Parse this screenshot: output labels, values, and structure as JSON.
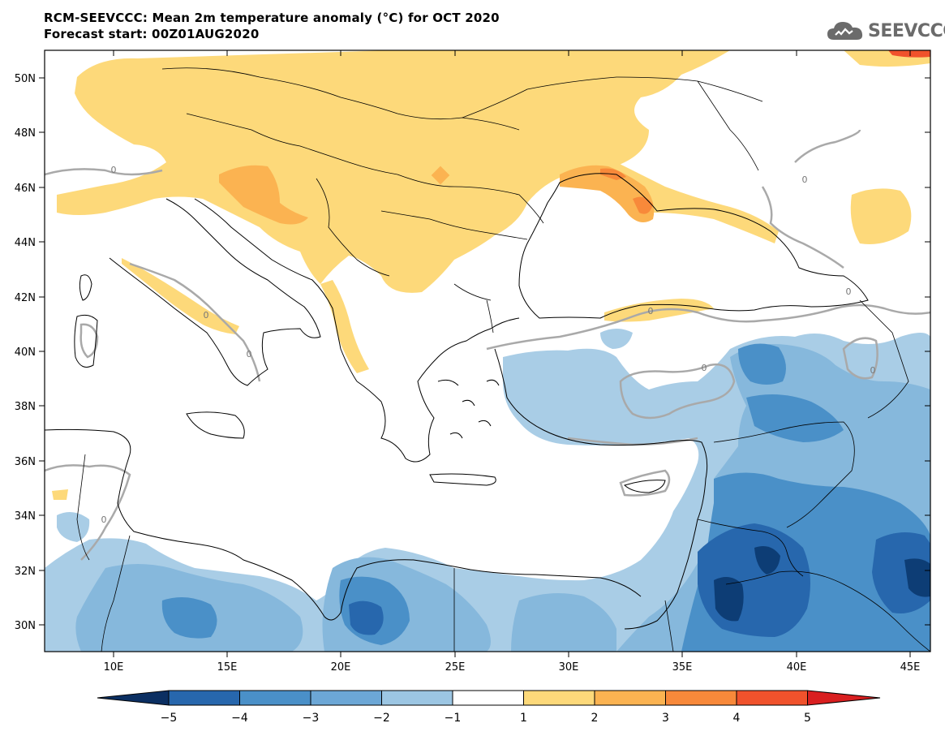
{
  "header": {
    "title_line1": "RCM-SEEVCCC: Mean 2m temperature anomaly (°C) for OCT 2020",
    "title_line2": "Forecast start: 00Z01AUG2020",
    "logo_text": "SEEVCCC"
  },
  "map": {
    "lat_labels": [
      "50N",
      "48N",
      "46N",
      "44N",
      "42N",
      "40N",
      "38N",
      "36N",
      "34N",
      "32N",
      "30N"
    ],
    "lon_labels": [
      "10E",
      "15E",
      "20E",
      "25E",
      "30E",
      "35E",
      "40E",
      "45E"
    ],
    "contour_label": "0",
    "colors": {
      "neg5": "#0d3d75",
      "neg4": "#2767ad",
      "neg3": "#4a90c8",
      "neg2": "#86b8dc",
      "neg1": "#a9cde6",
      "zero": "#ffffff",
      "pos1": "#fdd97a",
      "pos2": "#fbb351",
      "pos3": "#f8893a",
      "pos4": "#f0522c",
      "pos5": "#d91f20",
      "contour": "#a9a9a9"
    }
  },
  "colorbar": {
    "labels": [
      "−5",
      "−4",
      "−3",
      "−2",
      "−1",
      "1",
      "2",
      "3",
      "4",
      "5"
    ],
    "colors": [
      "#0b2f62",
      "#2767ad",
      "#4a90c8",
      "#6ca7d6",
      "#9cc6e3",
      "#ffffff",
      "#fdd97a",
      "#fbb351",
      "#f8893a",
      "#f0522c",
      "#d91f20"
    ]
  }
}
